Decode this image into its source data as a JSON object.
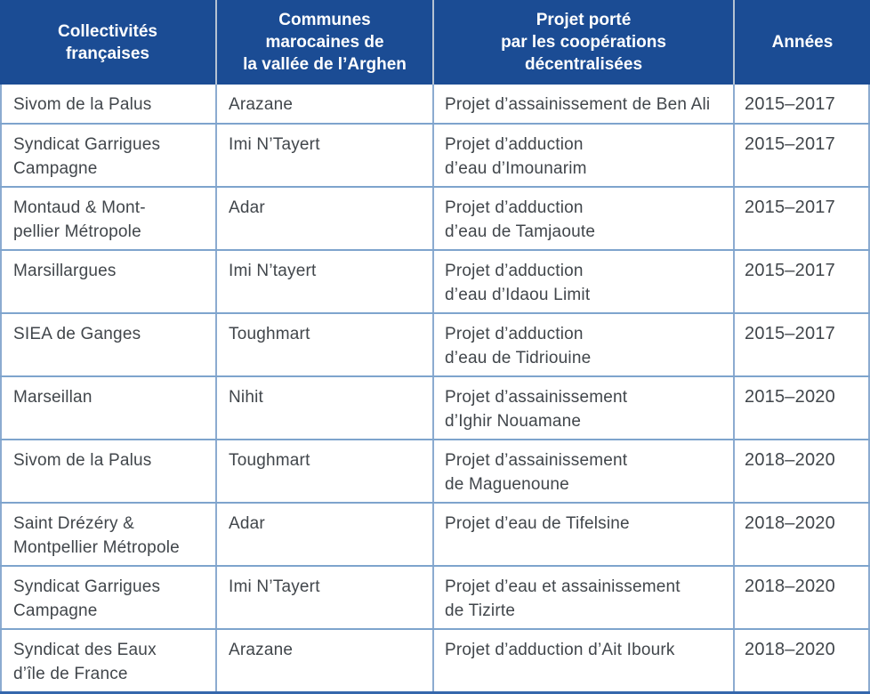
{
  "colors": {
    "header_bg": "#1b4c94",
    "header_text": "#ffffff",
    "header_divider": "#b5c2d2",
    "border_vertical": "#8cabd0",
    "border_horizontal": "#7ea4cd",
    "bottom_border": "#3567ac",
    "bottom_strip": "#d8e4f1",
    "body_text": "#41464b"
  },
  "table": {
    "columns": [
      {
        "label": "Collectivités\nfrançaises"
      },
      {
        "label": "Communes\nmarocaines de\nla vallée de l’Arghen"
      },
      {
        "label": "Projet porté\npar les coopérations\ndécentralisées"
      },
      {
        "label": "Années"
      }
    ],
    "rows": [
      {
        "collectivite": "Sivom de la Palus",
        "commune": "Arazane",
        "projet": "Projet d’assainissement de Ben Ali",
        "annees": "2015–2017"
      },
      {
        "collectivite": "Syndicat Garrigues\nCampagne",
        "commune": "Imi N’Tayert",
        "projet": "Projet d’adduction\nd’eau d’Imounarim",
        "annees": "2015–2017"
      },
      {
        "collectivite": "Montaud & Mont-\npellier Métropole",
        "commune": "Adar",
        "projet": "Projet d’adduction\nd’eau de Tamjaoute",
        "annees": "2015–2017"
      },
      {
        "collectivite": "Marsillargues",
        "commune": "Imi N’tayert",
        "projet": "Projet d’adduction\nd’eau d’Idaou Limit",
        "annees": "2015–2017"
      },
      {
        "collectivite": "SIEA de Ganges",
        "commune": "Toughmart",
        "projet": "Projet d’adduction\nd’eau de Tidriouine",
        "annees": "2015–2017"
      },
      {
        "collectivite": "Marseillan",
        "commune": "Nihit",
        "projet": "Projet d’assainissement\nd’Ighir Nouamane",
        "annees": "2015–2020"
      },
      {
        "collectivite": "Sivom de la Palus",
        "commune": "Toughmart",
        "projet": "Projet d’assainissement\nde Maguenoune",
        "annees": "2018–2020"
      },
      {
        "collectivite": "Saint Drézéry &\nMontpellier Métropole",
        "commune": "Adar",
        "projet": "Projet d’eau de Tifelsine",
        "annees": "2018–2020"
      },
      {
        "collectivite": "Syndicat Garrigues\nCampagne",
        "commune": "Imi N’Tayert",
        "projet": "Projet d’eau et assainissement\nde Tizirte",
        "annees": "2018–2020"
      },
      {
        "collectivite": "Syndicat des Eaux\nd’île de France",
        "commune": "Arazane",
        "projet": "Projet d’adduction d’Ait Ibourk",
        "annees": "2018–2020"
      }
    ]
  }
}
